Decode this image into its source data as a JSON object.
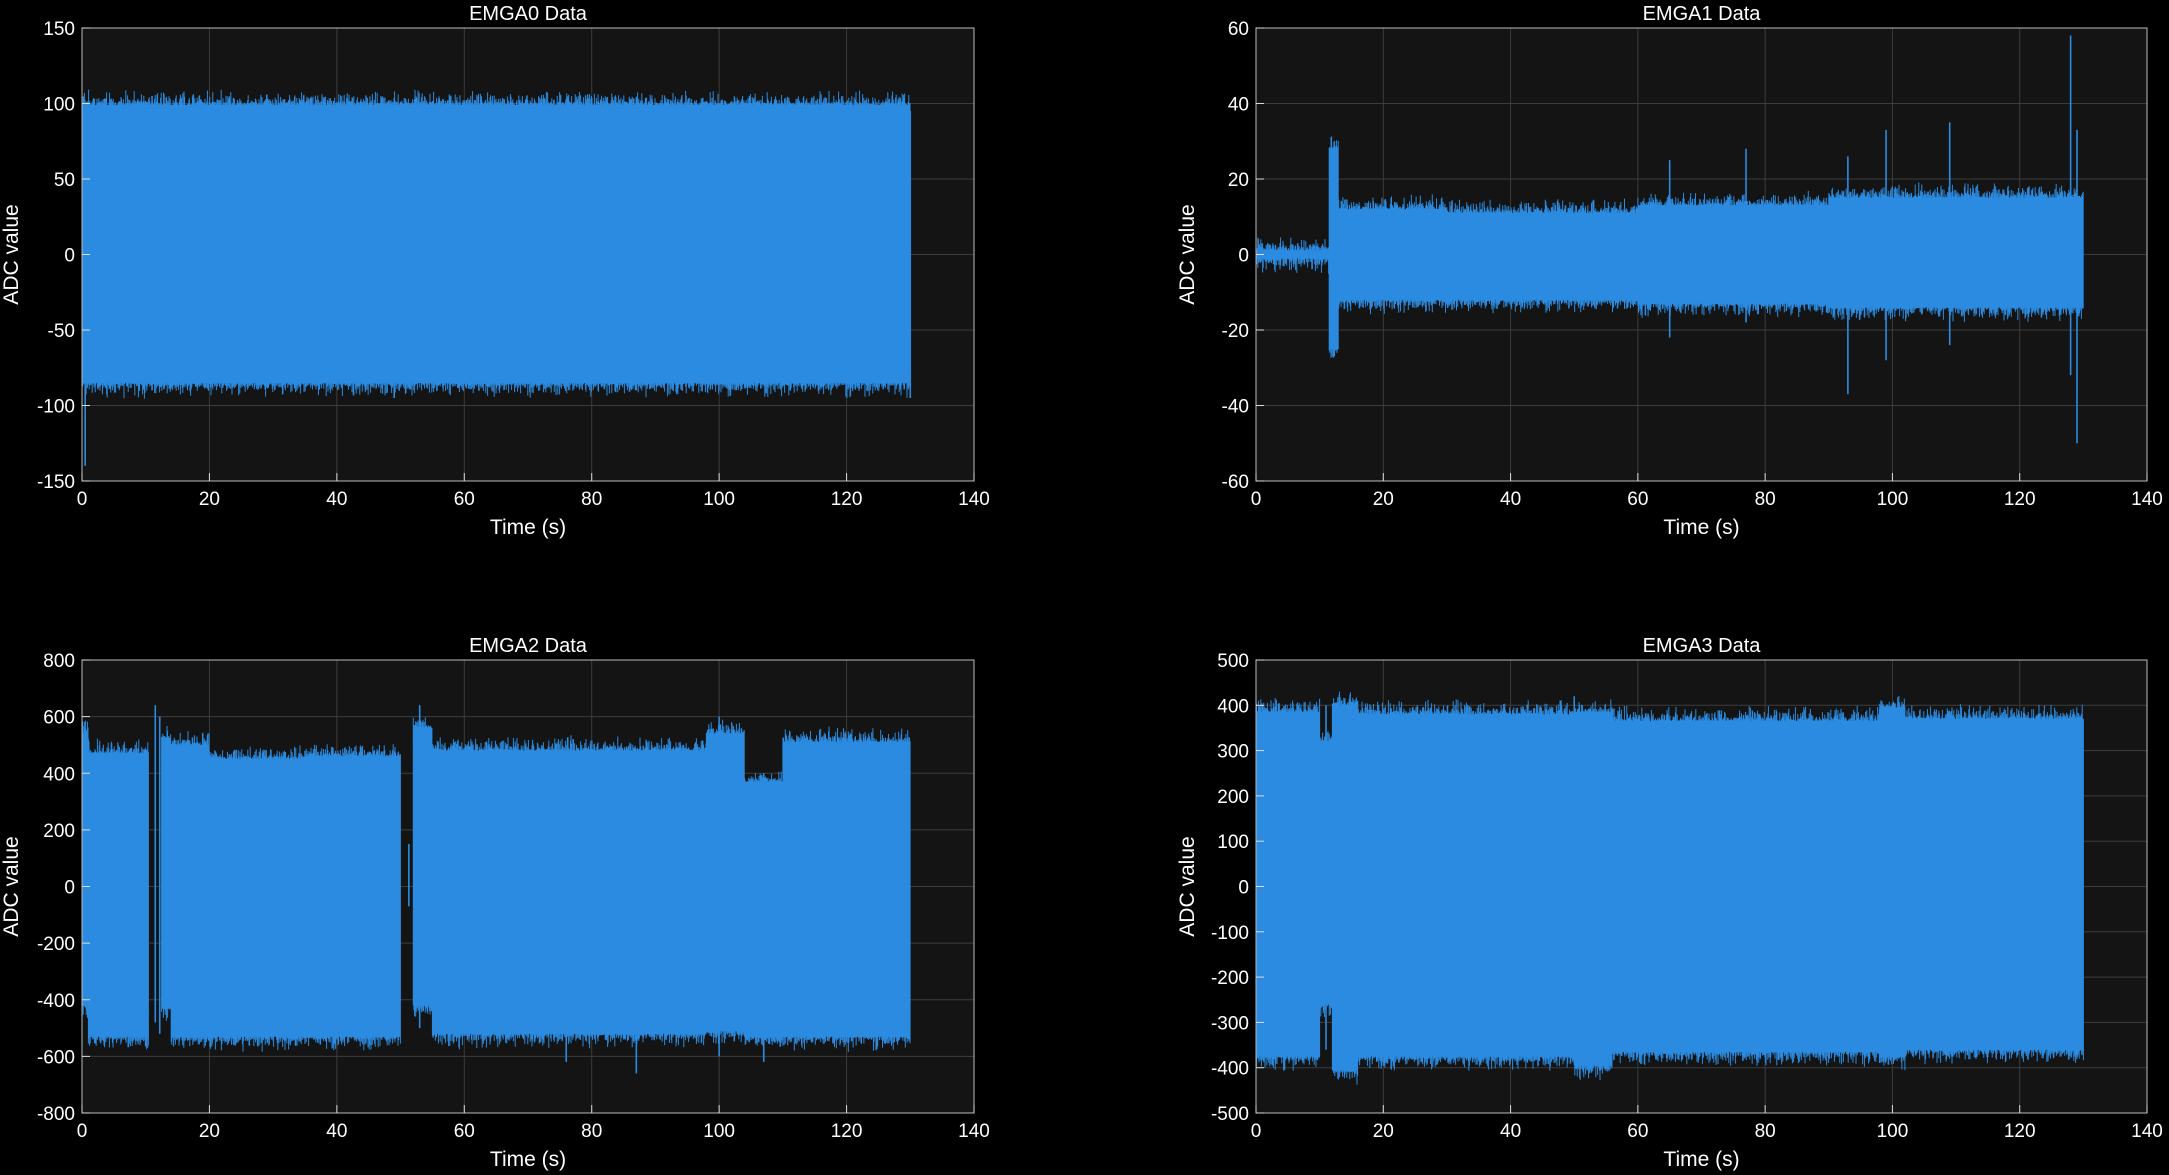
{
  "chart_data": [
    {
      "type": "line",
      "title": "EMGA0 Data",
      "xlabel": "Time (s)",
      "ylabel": "ADC value",
      "xlim": [
        0,
        140
      ],
      "ylim": [
        -150,
        150
      ],
      "xticks": [
        0,
        20,
        40,
        60,
        80,
        100,
        120,
        140
      ],
      "yticks": [
        -150,
        -100,
        -50,
        0,
        50,
        100,
        150
      ],
      "grid": true,
      "series_color": "#2a8be0",
      "segments": [
        {
          "t": [
            0,
            130
          ],
          "min": -85,
          "max": 99
        }
      ],
      "spikes": [
        {
          "t": 0.5,
          "min": -140,
          "max": 99
        },
        {
          "t": 11,
          "min": -90,
          "max": 105
        },
        {
          "t": 29,
          "min": -88,
          "max": 106
        },
        {
          "t": 49,
          "min": -95,
          "max": 100
        },
        {
          "t": 87,
          "min": -90,
          "max": 104
        },
        {
          "t": 130,
          "min": -95,
          "max": 95
        }
      ]
    },
    {
      "type": "line",
      "title": "EMGA1 Data",
      "xlabel": "Time (s)",
      "ylabel": "ADC value",
      "xlim": [
        0,
        140
      ],
      "ylim": [
        -60,
        60
      ],
      "xticks": [
        0,
        20,
        40,
        60,
        80,
        100,
        120,
        140
      ],
      "yticks": [
        -60,
        -40,
        -20,
        0,
        20,
        40,
        60
      ],
      "grid": true,
      "series_color": "#2a8be0",
      "segments": [
        {
          "t": [
            0,
            11.5
          ],
          "min": -1,
          "max": 1
        },
        {
          "t": [
            11.5,
            13
          ],
          "min": -25,
          "max": 28
        },
        {
          "t": [
            13,
            30
          ],
          "min": -12,
          "max": 12
        },
        {
          "t": [
            30,
            60
          ],
          "min": -12,
          "max": 11
        },
        {
          "t": [
            60,
            90
          ],
          "min": -13,
          "max": 13
        },
        {
          "t": [
            90,
            130
          ],
          "min": -14,
          "max": 15
        }
      ],
      "spikes": [
        {
          "t": 12.3,
          "min": -27,
          "max": 30
        },
        {
          "t": 65,
          "min": -22,
          "max": 25
        },
        {
          "t": 77,
          "min": -18,
          "max": 28
        },
        {
          "t": 93,
          "min": -37,
          "max": 26
        },
        {
          "t": 99,
          "min": -28,
          "max": 33
        },
        {
          "t": 109,
          "min": -24,
          "max": 35
        },
        {
          "t": 128,
          "min": -32,
          "max": 58
        },
        {
          "t": 129,
          "min": -50,
          "max": 33
        }
      ]
    },
    {
      "type": "line",
      "title": "EMGA2 Data",
      "xlabel": "Time (s)",
      "ylabel": "ADC value",
      "xlim": [
        0,
        140
      ],
      "ylim": [
        -800,
        800
      ],
      "xticks": [
        0,
        20,
        40,
        60,
        80,
        100,
        120,
        140
      ],
      "yticks": [
        -800,
        -600,
        -400,
        -200,
        0,
        200,
        400,
        600,
        800
      ],
      "grid": true,
      "series_color": "#2a8be0",
      "segments": [
        {
          "t": [
            0,
            1
          ],
          "min": -420,
          "max": 540
        },
        {
          "t": [
            1,
            10.5
          ],
          "min": -530,
          "max": 470
        },
        {
          "t": [
            12.5,
            14
          ],
          "min": -430,
          "max": 520
        },
        {
          "t": [
            14,
            20
          ],
          "min": -530,
          "max": 500
        },
        {
          "t": [
            20,
            35
          ],
          "min": -530,
          "max": 450
        },
        {
          "t": [
            35,
            50
          ],
          "min": -530,
          "max": 460
        },
        {
          "t": [
            52,
            55
          ],
          "min": -420,
          "max": 560
        },
        {
          "t": [
            55,
            98
          ],
          "min": -520,
          "max": 480
        },
        {
          "t": [
            98,
            104
          ],
          "min": -510,
          "max": 540
        },
        {
          "t": [
            104,
            110
          ],
          "min": -530,
          "max": 370
        },
        {
          "t": [
            110,
            130
          ],
          "min": -530,
          "max": 510
        }
      ],
      "spikes": [
        {
          "t": 11.5,
          "min": -480,
          "max": 640
        },
        {
          "t": 12.2,
          "min": -520,
          "max": 600
        },
        {
          "t": 51.3,
          "min": -70,
          "max": 150
        },
        {
          "t": 53,
          "min": -500,
          "max": 640
        },
        {
          "t": 76,
          "min": -620,
          "max": 480
        },
        {
          "t": 87,
          "min": -660,
          "max": 470
        },
        {
          "t": 100,
          "min": -600,
          "max": 600
        },
        {
          "t": 107,
          "min": -620,
          "max": 400
        }
      ]
    },
    {
      "type": "line",
      "title": "EMGA3 Data",
      "xlabel": "Time (s)",
      "ylabel": "ADC value",
      "xlim": [
        0,
        140
      ],
      "ylim": [
        -500,
        500
      ],
      "xticks": [
        0,
        20,
        40,
        60,
        80,
        100,
        120,
        140
      ],
      "yticks": [
        -500,
        -400,
        -300,
        -200,
        -100,
        0,
        100,
        200,
        300,
        400,
        500
      ],
      "grid": true,
      "series_color": "#2a8be0",
      "segments": [
        {
          "t": [
            0,
            10
          ],
          "min": -375,
          "max": 385
        },
        {
          "t": [
            10,
            12
          ],
          "min": -260,
          "max": 320
        },
        {
          "t": [
            12,
            16
          ],
          "min": -405,
          "max": 400
        },
        {
          "t": [
            16,
            50
          ],
          "min": -375,
          "max": 380
        },
        {
          "t": [
            50,
            56
          ],
          "min": -395,
          "max": 385
        },
        {
          "t": [
            56,
            98
          ],
          "min": -365,
          "max": 365
        },
        {
          "t": [
            98,
            102
          ],
          "min": -375,
          "max": 395
        },
        {
          "t": [
            102,
            130
          ],
          "min": -360,
          "max": 370
        }
      ],
      "spikes": [
        {
          "t": 11,
          "min": -360,
          "max": 400
        },
        {
          "t": 14,
          "min": -410,
          "max": 405
        },
        {
          "t": 50,
          "min": -390,
          "max": 420
        },
        {
          "t": 100,
          "min": -370,
          "max": 400
        }
      ]
    }
  ]
}
